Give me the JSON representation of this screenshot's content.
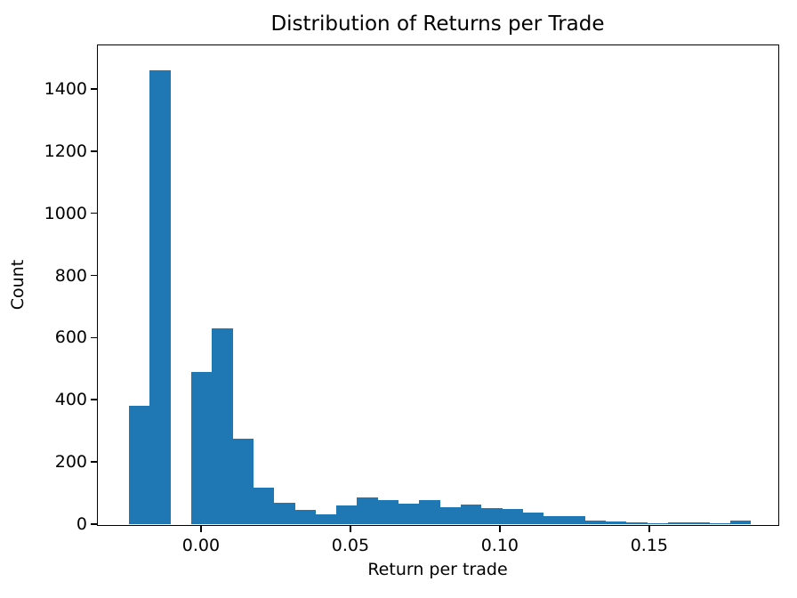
{
  "chart_data": {
    "type": "bar",
    "subtype": "histogram",
    "title": "Distribution of Returns per Trade",
    "xlabel": "Return per trade",
    "ylabel": "Count",
    "bar_color": "#1f77b4",
    "axis_color": "#000000",
    "grid": "off",
    "legend": "none",
    "xlim": [
      -0.0345,
      0.1929
    ],
    "ylim": [
      0,
      1540
    ],
    "bin_edges": [
      -0.02407,
      -0.01713,
      -0.01019,
      -0.00326,
      0.00368,
      0.01062,
      0.01756,
      0.0245,
      0.03143,
      0.03837,
      0.04531,
      0.05225,
      0.05919,
      0.06612,
      0.07306,
      0.08,
      0.08694,
      0.09388,
      0.10081,
      0.10775,
      0.11469,
      0.12163,
      0.12857,
      0.1355,
      0.14244,
      0.14938,
      0.15632,
      0.16326,
      0.17019,
      0.17713,
      0.18407
    ],
    "counts": [
      380,
      1460,
      0,
      490,
      630,
      275,
      117,
      70,
      45,
      32,
      61,
      86,
      78,
      66,
      77,
      53,
      62,
      51,
      48,
      36,
      27,
      27,
      12,
      9,
      6,
      3,
      7,
      7,
      3,
      11
    ],
    "x_ticks": [
      {
        "value": 0.0,
        "label": "0.00"
      },
      {
        "value": 0.05,
        "label": "0.05"
      },
      {
        "value": 0.1,
        "label": "0.10"
      },
      {
        "value": 0.15,
        "label": "0.15"
      }
    ],
    "y_ticks": [
      {
        "value": 0,
        "label": "0"
      },
      {
        "value": 200,
        "label": "200"
      },
      {
        "value": 400,
        "label": "400"
      },
      {
        "value": 600,
        "label": "600"
      },
      {
        "value": 800,
        "label": "800"
      },
      {
        "value": 1000,
        "label": "1000"
      },
      {
        "value": 1200,
        "label": "1200"
      },
      {
        "value": 1400,
        "label": "1400"
      }
    ]
  }
}
